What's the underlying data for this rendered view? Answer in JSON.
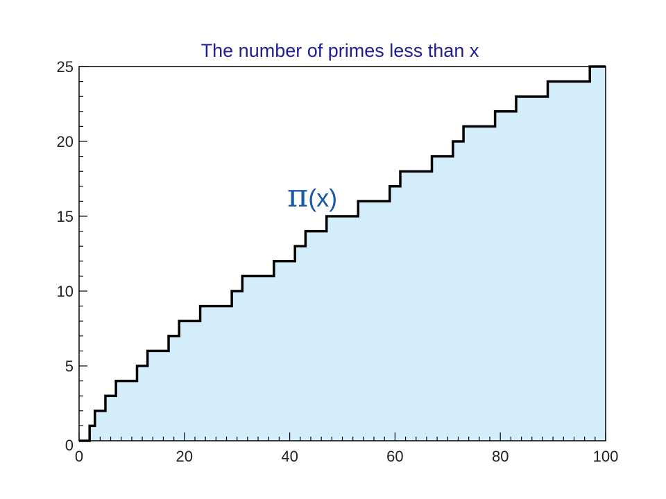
{
  "chart_data": {
    "type": "area",
    "title": "The number of primes less than x",
    "xlabel": "",
    "ylabel": "",
    "xlim": [
      0,
      100
    ],
    "ylim": [
      0,
      25
    ],
    "xticks": [
      0,
      20,
      40,
      60,
      80,
      100
    ],
    "yticks": [
      0,
      5,
      10,
      15,
      20,
      25
    ],
    "grid": false,
    "legend": "none",
    "annotation": {
      "pi": "π",
      "arg": "(x)",
      "x": 44,
      "y": 16.2
    },
    "series": [
      {
        "x": [
          0,
          2,
          3,
          5,
          7,
          11,
          13,
          17,
          19,
          23,
          29,
          31,
          37,
          41,
          43,
          47,
          53,
          59,
          61,
          67,
          71,
          73,
          79,
          83,
          89,
          97,
          100
        ],
        "y": [
          0,
          1,
          2,
          3,
          4,
          5,
          6,
          7,
          8,
          9,
          10,
          11,
          12,
          13,
          14,
          15,
          16,
          17,
          18,
          19,
          20,
          21,
          22,
          23,
          24,
          25,
          25
        ]
      }
    ],
    "colors": {
      "fill": "#d4edfb",
      "line": "#000000",
      "title": "#1f1f8f",
      "annotation": "#1a5aa6",
      "axis": "#000000",
      "tick_label": "#222222"
    }
  }
}
